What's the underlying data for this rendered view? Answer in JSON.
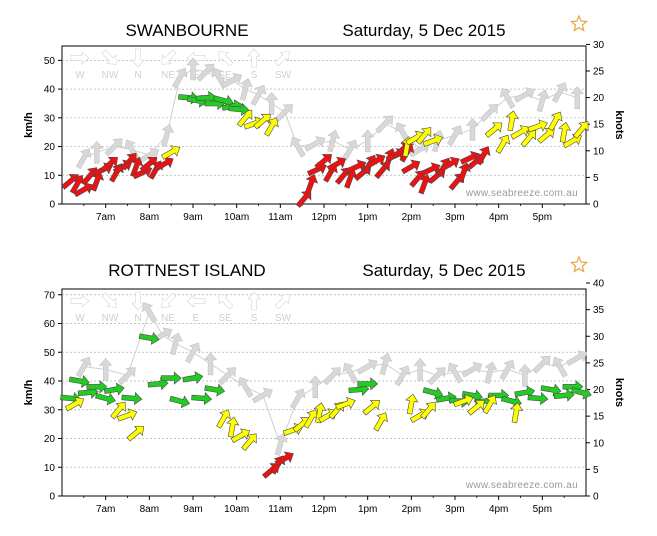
{
  "chart_data": [
    {
      "type": "scatter",
      "title": "SWANBOURNE",
      "date": "Saturday, 5 Dec 2015",
      "ylabel": "km/h",
      "y2label": "knots",
      "ylim": [
        0,
        55
      ],
      "yticks": [
        0,
        10,
        20,
        30,
        40,
        50
      ],
      "y2ticks": [
        0,
        5,
        10,
        15,
        20,
        25,
        30
      ],
      "x_tick_labels": [
        "7am",
        "8am",
        "9am",
        "10am",
        "11am",
        "12pm",
        "1pm",
        "2pm",
        "3pm",
        "4pm",
        "5pm"
      ],
      "direction_labels": [
        "W",
        "NW",
        "N",
        "NE",
        "E",
        "SE",
        "S",
        "SW"
      ],
      "watermark": "www.seabreeze.com.au",
      "series": [
        {
          "color": "#ee1111",
          "x": [
            6.2,
            6.35,
            6.5,
            6.65,
            6.8,
            6.95,
            7.1,
            7.25,
            7.4,
            7.55,
            7.7,
            7.85,
            8.0,
            8.15,
            8.35,
            11.55,
            11.7,
            11.85,
            12.0,
            12.15,
            12.3,
            12.45,
            12.6,
            12.75,
            12.9,
            13.05,
            13.2,
            13.35,
            13.5,
            13.65,
            13.8,
            13.9,
            14.0,
            14.15,
            14.3,
            14.45,
            14.6,
            14.75,
            14.9,
            15.05,
            15.2,
            15.35,
            15.5,
            15.65
          ],
          "values": [
            8,
            7,
            5,
            10,
            8,
            12,
            14,
            11,
            13,
            15,
            13,
            11,
            14,
            12,
            14,
            2,
            7,
            12,
            15,
            11,
            14,
            10,
            9,
            13,
            11,
            14,
            15,
            12,
            16,
            17,
            19,
            18,
            13,
            9,
            7,
            12,
            10,
            13,
            14,
            8,
            11,
            16,
            15,
            17
          ]
        },
        {
          "color": "#ffff00",
          "x": [
            8.5,
            10.2,
            10.4,
            10.6,
            10.8,
            13.9,
            14.1,
            14.3,
            14.5,
            15.9,
            16.1,
            16.3,
            16.5,
            16.7,
            16.9,
            17.1,
            17.3,
            17.5,
            17.7,
            17.9
          ],
          "values": [
            18,
            30,
            28,
            29,
            27,
            20,
            23,
            24,
            22,
            26,
            21,
            29,
            25,
            23,
            27,
            24,
            29,
            25,
            22,
            26
          ]
        },
        {
          "color": "#22cc22",
          "x": [
            8.9,
            9.1,
            9.3,
            9.5,
            9.7,
            9.9,
            10.05
          ],
          "values": [
            37,
            36,
            37,
            35,
            36,
            34,
            33
          ]
        },
        {
          "color": "#d8d8d8",
          "x": [
            6.5,
            6.8,
            7.2,
            7.6,
            8.0,
            8.4,
            8.7,
            9.0,
            9.3,
            9.6,
            9.9,
            10.2,
            10.5,
            10.8,
            11.1,
            11.4,
            11.8,
            12.2,
            12.6,
            13.0,
            13.4,
            13.8,
            14.2,
            14.6,
            15.0,
            15.4,
            15.8,
            16.2,
            16.6,
            17.0,
            17.4,
            17.8
          ],
          "values": [
            16,
            18,
            20,
            19,
            17,
            24,
            44,
            47,
            46,
            44,
            43,
            40,
            38,
            35,
            32,
            20,
            21,
            22,
            19,
            22,
            28,
            25,
            19,
            22,
            24,
            26,
            32,
            37,
            38,
            36,
            39,
            37
          ]
        }
      ]
    },
    {
      "type": "scatter",
      "title": "ROTTNEST ISLAND",
      "date": "Saturday, 5 Dec 2015",
      "ylabel": "km/h",
      "y2label": "knots",
      "ylim": [
        0,
        72
      ],
      "yticks": [
        0,
        10,
        20,
        30,
        40,
        50,
        60,
        70
      ],
      "y2ticks": [
        0,
        5,
        10,
        15,
        20,
        25,
        30,
        35,
        40
      ],
      "x_tick_labels": [
        "7am",
        "8am",
        "9am",
        "10am",
        "11am",
        "12pm",
        "1pm",
        "2pm",
        "3pm",
        "4pm",
        "5pm"
      ],
      "direction_labels": [
        "W",
        "NW",
        "N",
        "NE",
        "E",
        "SE",
        "S",
        "SW"
      ],
      "watermark": "www.seabreeze.com.au",
      "series": [
        {
          "color": "#22cc22",
          "x": [
            6.2,
            6.4,
            6.6,
            6.8,
            7.0,
            7.2,
            7.6,
            8.0,
            8.2,
            8.5,
            8.7,
            9.0,
            9.2,
            9.5,
            12.8,
            13.0,
            14.5,
            14.8,
            15.1,
            15.4,
            15.7,
            16.0,
            16.3,
            16.6,
            16.9,
            17.2,
            17.5,
            17.7,
            17.9
          ],
          "values": [
            34,
            40,
            36,
            38,
            34,
            37,
            34,
            55,
            39,
            41,
            33,
            41,
            34,
            37,
            37,
            39,
            36,
            34,
            33,
            35,
            33,
            35,
            33,
            36,
            34,
            37,
            35,
            38,
            36
          ]
        },
        {
          "color": "#ffff00",
          "x": [
            6.3,
            7.3,
            7.5,
            7.7,
            9.7,
            9.9,
            10.1,
            10.3,
            11.3,
            11.5,
            11.7,
            11.9,
            12.1,
            12.3,
            12.5,
            13.1,
            13.3,
            14.0,
            14.2,
            14.4,
            15.2,
            15.5,
            15.8,
            16.4
          ],
          "values": [
            32,
            30,
            28,
            22,
            27,
            24,
            21,
            19,
            23,
            25,
            27,
            29,
            28,
            30,
            32,
            31,
            26,
            32,
            28,
            30,
            33,
            31,
            32,
            29
          ]
        },
        {
          "color": "#ee1111",
          "x": [
            10.8,
            10.95,
            11.1
          ],
          "values": [
            9,
            11,
            13
          ]
        },
        {
          "color": "#d8d8d8",
          "x": [
            6.5,
            7.0,
            7.5,
            8.0,
            8.3,
            8.6,
            9.0,
            9.4,
            9.8,
            10.2,
            10.6,
            11.0,
            11.4,
            11.8,
            12.2,
            12.6,
            13.0,
            13.4,
            13.8,
            14.2,
            14.6,
            15.0,
            15.4,
            15.8,
            16.2,
            16.6,
            17.0,
            17.4,
            17.8
          ],
          "values": [
            45,
            44,
            42,
            64,
            56,
            53,
            50,
            46,
            42,
            38,
            35,
            18,
            34,
            38,
            42,
            43,
            45,
            46,
            42,
            44,
            42,
            43,
            44,
            43,
            44,
            42,
            46,
            45,
            48
          ]
        }
      ]
    }
  ]
}
